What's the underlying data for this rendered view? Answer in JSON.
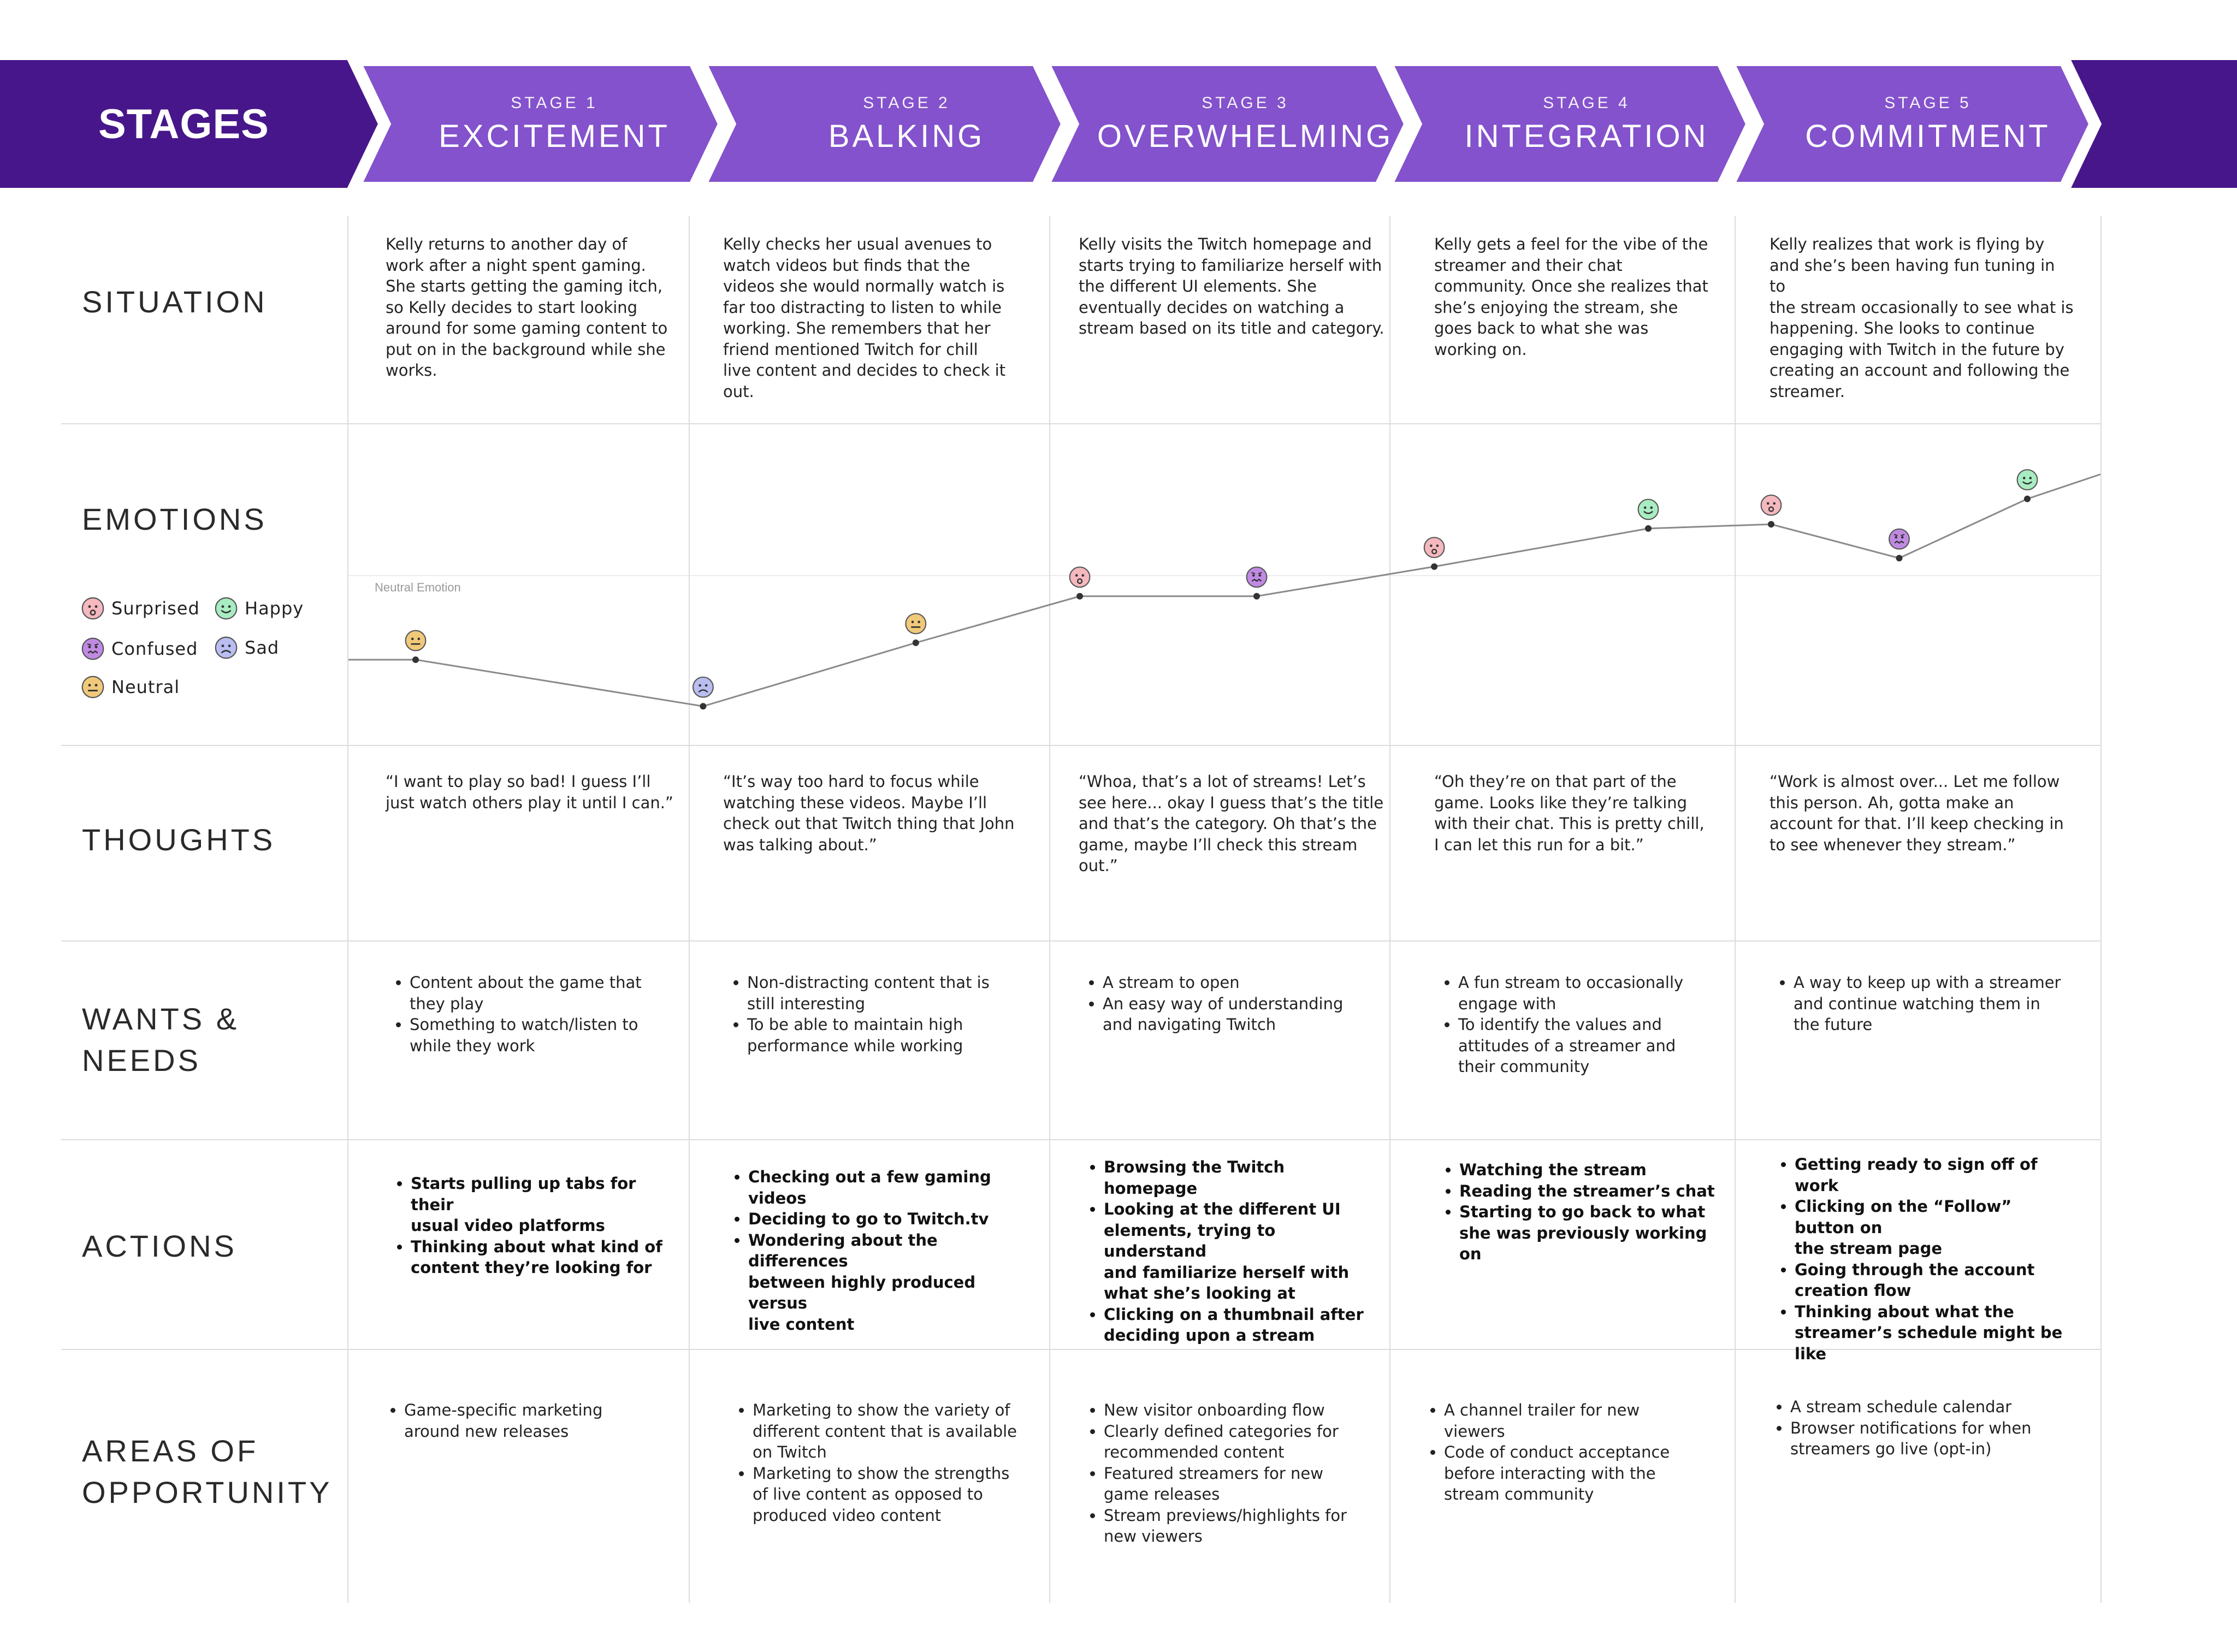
{
  "header": {
    "title": "STAGES"
  },
  "stages": [
    {
      "kicker": "STAGE 1",
      "name": "EXCITEMENT"
    },
    {
      "kicker": "STAGE 2",
      "name": "BALKING"
    },
    {
      "kicker": "STAGE 3",
      "name": "OVERWHELMING"
    },
    {
      "kicker": "STAGE 4",
      "name": "INTEGRATION"
    },
    {
      "kicker": "STAGE 5",
      "name": "COMMITMENT"
    }
  ],
  "colors": {
    "band_dark": "#47168a",
    "band_light": "#8452cc",
    "surprised": "#f4b8be",
    "happy": "#a8ecc1",
    "confused": "#c08ae3",
    "sad": "#b9bdf0",
    "neutral": "#f0c97a"
  },
  "rows": {
    "situation": "SITUATION",
    "emotions": "EMOTIONS",
    "thoughts": "THOUGHTS",
    "wants": [
      "WANTS &",
      "NEEDS"
    ],
    "actions": "ACTIONS",
    "opportunity": [
      "AREAS OF",
      "OPPORTUNITY"
    ]
  },
  "legend": {
    "surprised": "Surprised",
    "happy": "Happy",
    "confused": "Confused",
    "sad": "Sad",
    "neutral": "Neutral",
    "neutral_line": "Neutral Emotion"
  },
  "situation": [
    [
      "Kelly returns to another day of",
      "work after a night spent gaming.",
      "She starts getting the gaming itch,",
      "so Kelly decides to start looking",
      "around for some gaming content to",
      "put on in the background while she",
      "works."
    ],
    [
      "Kelly checks her usual avenues to",
      "watch videos but finds that the",
      "videos she would normally watch is",
      "far too distracting to listen to while",
      "working. She remembers that her",
      "friend mentioned Twitch for chill",
      "live content and decides to check it",
      "out."
    ],
    [
      "Kelly visits the Twitch homepage and",
      "starts trying to familiarize herself with",
      "the different UI elements. She",
      "eventually decides on watching a",
      "stream based on its title and category."
    ],
    [
      "Kelly gets a feel for the vibe of the",
      "streamer and their chat",
      "community. Once she realizes that",
      "she’s enjoying the stream, she",
      "goes back to what she was",
      "working on."
    ],
    [
      "Kelly realizes that work is flying by",
      "and she’s been having fun tuning in to",
      "the stream occasionally to see what is",
      "happening. She looks to continue",
      "engaging with Twitch in the future by",
      "creating an account and following the",
      "streamer."
    ]
  ],
  "thoughts": [
    [
      "“I want to play so bad! I guess I’ll",
      "just watch others play it until I can.”"
    ],
    [
      "“It’s way too hard to focus while",
      "watching these videos. Maybe I’ll",
      "check out that Twitch thing that John",
      "was talking about.”"
    ],
    [
      "“Whoa, that’s a lot of streams! Let’s",
      "see here... okay I guess that’s the title",
      "and that’s the category. Oh that’s the",
      "game, maybe I’ll check this stream",
      "out.”"
    ],
    [
      "“Oh they’re on that part of the",
      "game. Looks like they’re talking",
      "with their chat. This is pretty chill,",
      "I can let this run for a bit.”"
    ],
    [
      "“Work is almost over... Let me follow",
      "this person. Ah, gotta make an",
      "account for that. I’ll keep checking in",
      "to see whenever they stream.”"
    ]
  ],
  "wants": [
    [
      [
        "Content about the game that",
        "they play"
      ],
      [
        "Something to watch/listen to",
        "while they work"
      ]
    ],
    [
      [
        "Non-distracting content that is",
        "still interesting"
      ],
      [
        "To be able to maintain high",
        "performance while working"
      ]
    ],
    [
      [
        "A stream to open"
      ],
      [
        "An easy way of understanding",
        "and navigating Twitch"
      ]
    ],
    [
      [
        "A fun stream to occasionally",
        "engage with"
      ],
      [
        "To identify the values and",
        "attitudes of a streamer and",
        "their community"
      ]
    ],
    [
      [
        "A way to keep up with a streamer",
        "and continue watching them in",
        "the future"
      ]
    ]
  ],
  "actions": [
    [
      [
        "Starts pulling up tabs for their",
        "usual video platforms"
      ],
      [
        "Thinking about what kind of",
        "content they’re looking for"
      ]
    ],
    [
      [
        "Checking out a few gaming videos"
      ],
      [
        "Deciding to go to Twitch.tv"
      ],
      [
        "Wondering about the differences",
        "between highly produced versus",
        "live content"
      ]
    ],
    [
      [
        "Browsing the Twitch homepage"
      ],
      [
        "Looking at the different UI",
        "elements, trying to understand",
        "and familiarize herself with",
        "what she’s looking at"
      ],
      [
        "Clicking on a thumbnail after",
        "deciding upon a stream"
      ]
    ],
    [
      [
        "Watching the stream"
      ],
      [
        "Reading the streamer’s chat"
      ],
      [
        "Starting to go back to what",
        "she was previously working on"
      ]
    ],
    [
      [
        "Getting ready to sign off of work"
      ],
      [
        "Clicking on the “Follow” button on",
        "the stream page"
      ],
      [
        "Going through the account",
        "creation flow"
      ],
      [
        "Thinking about what the",
        "streamer’s schedule might be like"
      ]
    ]
  ],
  "opportunity": [
    [
      [
        "Game-specific marketing",
        "around new releases"
      ]
    ],
    [
      [
        "Marketing to show the variety of",
        "different content that is available",
        "on Twitch"
      ],
      [
        "Marketing to show the strengths",
        "of live content as opposed to",
        "produced video content"
      ]
    ],
    [
      [
        "New visitor onboarding flow"
      ],
      [
        "Clearly defined categories for",
        "recommended content"
      ],
      [
        "Featured streamers for new",
        "game releases"
      ],
      [
        "Stream previews/highlights for",
        "new viewers"
      ]
    ],
    [
      [
        "A channel trailer for new",
        "viewers"
      ],
      [
        "Code of conduct acceptance",
        "before interacting with the",
        "stream community"
      ]
    ],
    [
      [
        "A stream schedule calendar"
      ],
      [
        "Browser notifications for when",
        "streamers go live (opt-in)"
      ]
    ]
  ],
  "chart_data": {
    "type": "line",
    "title": "",
    "xlabel": "",
    "ylabel": "",
    "y_scale": "relative emotion, 0 = Neutral Emotion, higher = more positive",
    "points": [
      {
        "stage": 1,
        "emotion": "neutral",
        "y": -1.0
      },
      {
        "stage": 2,
        "emotion": "sad",
        "y": -1.55
      },
      {
        "stage": 2,
        "emotion": "neutral",
        "y": -0.8
      },
      {
        "stage": 3,
        "emotion": "surprised",
        "y": -0.25
      },
      {
        "stage": 3,
        "emotion": "confused",
        "y": -0.25
      },
      {
        "stage": 4,
        "emotion": "surprised",
        "y": 0.1
      },
      {
        "stage": 4,
        "emotion": "happy",
        "y": 0.55
      },
      {
        "stage": 5,
        "emotion": "surprised",
        "y": 0.6
      },
      {
        "stage": 5,
        "emotion": "confused",
        "y": 0.2
      },
      {
        "stage": 5,
        "emotion": "happy",
        "y": 0.9
      }
    ]
  }
}
